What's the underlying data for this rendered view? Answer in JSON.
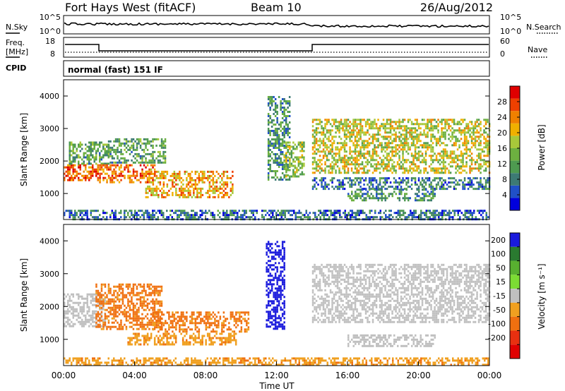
{
  "header": {
    "station": "Fort Hays West (fitACF)",
    "beam": "Beam 10",
    "date": "26/Aug/2012"
  },
  "top_panel": {
    "left_label": "N.Sky",
    "left_ticks": [
      "10^5",
      "10^0"
    ],
    "right_label": "N.Search",
    "right_ticks": [
      "10^5",
      "10^0"
    ]
  },
  "freq_panel": {
    "left_label_1": "Freq.",
    "left_label_2": "[MHz]",
    "left_ticks": [
      "18",
      "8"
    ],
    "right_label": "Nave",
    "right_ticks": [
      "60",
      "0"
    ]
  },
  "cpid": {
    "label": "CPID",
    "text": "normal (fast) 151 IF"
  },
  "colors": {
    "power": [
      "#0000dd",
      "#2050c8",
      "#3d7a74",
      "#4e9a50",
      "#6db040",
      "#a8c83a",
      "#f0b000",
      "#f08000",
      "#ee4000",
      "#e00000"
    ],
    "velocity": [
      "#1a1add",
      "#2a7a30",
      "#58b030",
      "#7cdc34",
      "#c0c0c0",
      "#f0a020",
      "#f07010",
      "#e83010",
      "#e00000"
    ]
  },
  "chart_data": [
    {
      "type": "heatmap",
      "name": "power",
      "ylabel": "Slant Range [km]",
      "yticks": [
        1000,
        2000,
        3000,
        4000
      ],
      "ylim": [
        200,
        4500
      ],
      "xlim": [
        0,
        24
      ],
      "colorbar_label": "Power [dB]",
      "colorbar_ticks": [
        4,
        8,
        12,
        16,
        20,
        24,
        28
      ],
      "colorbar_range": [
        0,
        32
      ],
      "echo_regions": [
        {
          "t0": 0.0,
          "t1": 2.0,
          "r0": 1350,
          "r1": 1900,
          "p": 26
        },
        {
          "t0": 0.3,
          "t1": 2.6,
          "r0": 1900,
          "r1": 2600,
          "p": 12
        },
        {
          "t0": 2.0,
          "t1": 5.2,
          "r0": 1300,
          "r1": 1900,
          "p": 25
        },
        {
          "t0": 2.5,
          "t1": 5.8,
          "r0": 1900,
          "r1": 2700,
          "p": 12
        },
        {
          "t0": 4.6,
          "t1": 9.6,
          "r0": 850,
          "r1": 1700,
          "p": 22
        },
        {
          "t0": 11.5,
          "t1": 12.8,
          "r0": 1400,
          "r1": 4000,
          "p": 10
        },
        {
          "t0": 12.4,
          "t1": 13.6,
          "r0": 1500,
          "r1": 2600,
          "p": 16
        },
        {
          "t0": 14.0,
          "t1": 24.0,
          "r0": 1600,
          "r1": 3300,
          "p": 18
        },
        {
          "t0": 14.0,
          "t1": 24.0,
          "r0": 1100,
          "r1": 1500,
          "p": 8
        },
        {
          "t0": 16.0,
          "t1": 21.0,
          "r0": 750,
          "r1": 1150,
          "p": 10
        },
        {
          "t0": 0.0,
          "t1": 24.0,
          "r0": 200,
          "r1": 500,
          "p": 7
        }
      ]
    },
    {
      "type": "heatmap",
      "name": "velocity",
      "ylabel": "Slant Range [km]",
      "yticks": [
        1000,
        2000,
        3000,
        4000
      ],
      "ylim": [
        200,
        4500
      ],
      "xlim": [
        0,
        24
      ],
      "xlabel": "Time UT",
      "xticks": [
        "00:00",
        "04:00",
        "08:00",
        "12:00",
        "16:00",
        "20:00",
        "00:00"
      ],
      "xtick_hours": [
        0,
        4,
        8,
        12,
        16,
        20,
        24
      ],
      "colorbar_label": "Velocity [m s⁻¹]",
      "colorbar_ticks": [
        200,
        100,
        50,
        15,
        -15,
        -50,
        -100,
        -200
      ],
      "echo_regions": [
        {
          "t0": 0.0,
          "t1": 2.4,
          "r0": 1400,
          "r1": 2400,
          "v": 0
        },
        {
          "t0": 1.8,
          "t1": 5.6,
          "r0": 1300,
          "r1": 2700,
          "v": -60
        },
        {
          "t0": 5.0,
          "t1": 10.5,
          "r0": 1200,
          "r1": 1850,
          "v": -60
        },
        {
          "t0": 3.6,
          "t1": 9.8,
          "r0": 800,
          "r1": 1200,
          "v": -40
        },
        {
          "t0": 11.4,
          "t1": 12.5,
          "r0": 1300,
          "r1": 4000,
          "v": 220
        },
        {
          "t0": 14.0,
          "t1": 24.0,
          "r0": 1500,
          "r1": 3300,
          "v": 0
        },
        {
          "t0": 16.0,
          "t1": 21.0,
          "r0": 750,
          "r1": 1150,
          "v": 0
        },
        {
          "t0": 0.0,
          "t1": 24.0,
          "r0": 200,
          "r1": 450,
          "v": -40
        }
      ]
    }
  ]
}
